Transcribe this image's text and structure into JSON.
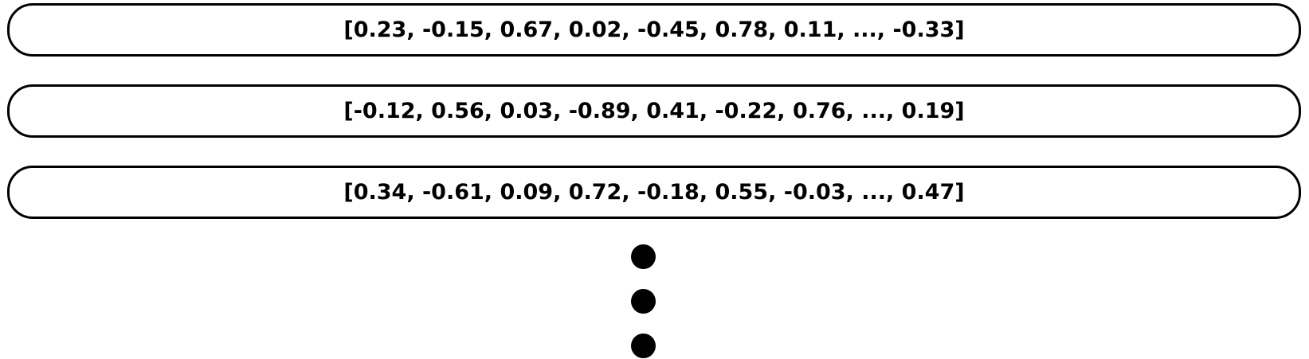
{
  "vectors": [
    {
      "text": "[0.23, -0.15, 0.67, 0.02, -0.45, 0.78, 0.11, ..., -0.33]"
    },
    {
      "text": "[-0.12, 0.56, 0.03, -0.89, 0.41, -0.22, 0.76, ..., 0.19]"
    },
    {
      "text": "[0.34, -0.61, 0.09, 0.72, -0.18, 0.55, -0.03, ..., 0.47]"
    }
  ],
  "colors": {
    "stroke": "#000000",
    "fill": "#ffffff",
    "ellipsis_dots": "#000000"
  },
  "continuation": {
    "icon": "vertical-ellipsis-icon",
    "dot_count": 3
  }
}
